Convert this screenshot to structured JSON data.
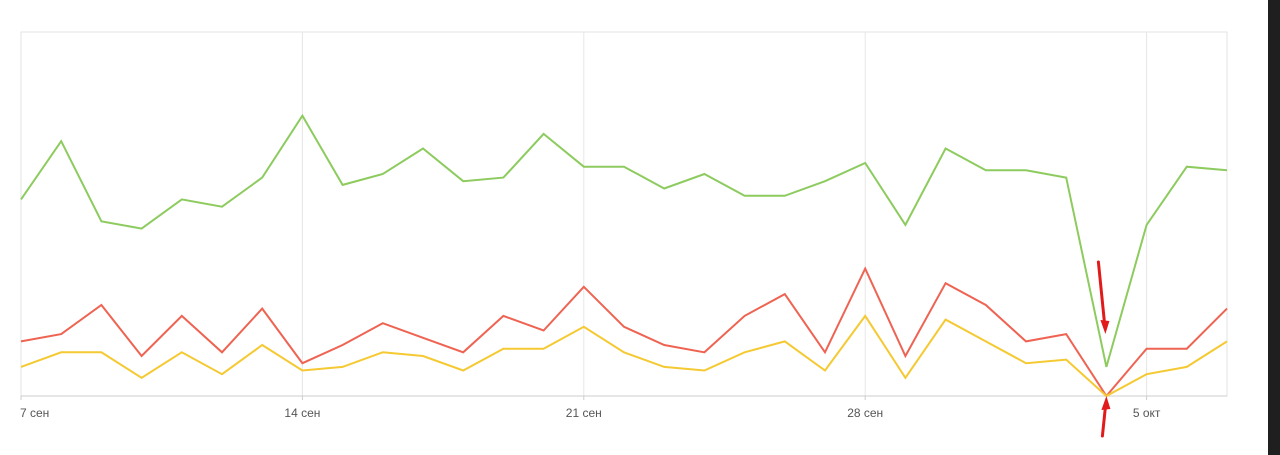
{
  "chart_data": {
    "type": "line",
    "x_tick_labels": [
      "7 сен",
      "14 сен",
      "21 сен",
      "28 сен",
      "5 окт"
    ],
    "x": [
      "2020-09-07",
      "2020-09-08",
      "2020-09-09",
      "2020-09-10",
      "2020-09-11",
      "2020-09-12",
      "2020-09-13",
      "2020-09-14",
      "2020-09-15",
      "2020-09-16",
      "2020-09-17",
      "2020-09-18",
      "2020-09-19",
      "2020-09-20",
      "2020-09-21",
      "2020-09-22",
      "2020-09-23",
      "2020-09-24",
      "2020-09-25",
      "2020-09-26",
      "2020-09-27",
      "2020-09-28",
      "2020-09-29",
      "2020-09-30",
      "2020-10-01",
      "2020-10-02",
      "2020-10-03",
      "2020-10-04",
      "2020-10-05",
      "2020-10-06",
      "2020-10-07"
    ],
    "xlim": [
      "2020-09-07",
      "2020-10-07"
    ],
    "ylim": [
      0,
      100
    ],
    "grid": "vertical",
    "legend": "none",
    "series": [
      {
        "color": "#8dcb5f",
        "values": [
          54,
          70,
          48,
          46,
          54,
          52,
          60,
          77,
          58,
          61,
          68,
          59,
          60,
          72,
          63,
          63,
          57,
          61,
          55,
          55,
          59,
          64,
          47,
          68,
          62,
          62,
          60,
          8,
          47,
          63,
          62
        ]
      },
      {
        "color": "#ee6352",
        "values": [
          15,
          17,
          25,
          11,
          22,
          12,
          24,
          9,
          14,
          20,
          16,
          12,
          22,
          18,
          30,
          19,
          14,
          12,
          22,
          28,
          12,
          35,
          11,
          31,
          25,
          15,
          17,
          0,
          13,
          13,
          24
        ]
      },
      {
        "color": "#f5c932",
        "values": [
          8,
          12,
          12,
          5,
          12,
          6,
          14,
          7,
          8,
          12,
          11,
          7,
          13,
          13,
          19,
          12,
          8,
          7,
          12,
          15,
          7,
          22,
          5,
          21,
          15,
          9,
          10,
          0,
          6,
          8,
          15
        ]
      }
    ]
  },
  "colors": {
    "annotation_arrow": "#e11b1b",
    "grid": "#e6e6e6",
    "axis": "#cccccc"
  },
  "annotations": [
    {
      "kind": "arrow-down",
      "x": "2020-10-04"
    },
    {
      "kind": "arrow-up",
      "x": "2020-10-04"
    }
  ]
}
